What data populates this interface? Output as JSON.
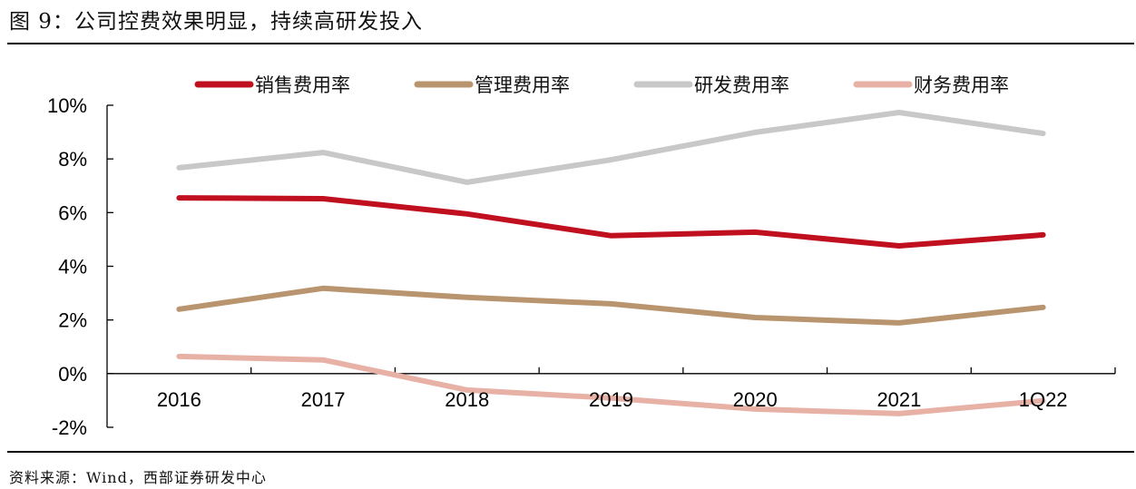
{
  "title": "图 9：公司控费效果明显，持续高研发投入",
  "source": "资料来源：Wind，西部证券研发中心",
  "chart_data": {
    "type": "line",
    "title": "图 9：公司控费效果明显，持续高研发投入",
    "xlabel": "",
    "ylabel": "",
    "categories": [
      "2016",
      "2017",
      "2018",
      "2019",
      "2020",
      "2021",
      "1Q22"
    ],
    "ylim": [
      -2,
      10
    ],
    "yticks": [
      -2,
      0,
      2,
      4,
      6,
      8,
      10
    ],
    "ytick_labels": [
      "-2%",
      "0%",
      "2%",
      "4%",
      "6%",
      "8%",
      "10%"
    ],
    "grid": false,
    "legend_position": "top",
    "series": [
      {
        "name": "销售费用率",
        "color": "#c0101f",
        "values": [
          6.55,
          6.52,
          5.95,
          5.14,
          5.27,
          4.76,
          5.17
        ]
      },
      {
        "name": "管理费用率",
        "color": "#b9956f",
        "values": [
          2.4,
          3.18,
          2.84,
          2.6,
          2.09,
          1.89,
          2.47
        ]
      },
      {
        "name": "研发费用率",
        "color": "#c8c8c8",
        "values": [
          7.67,
          8.24,
          7.13,
          7.97,
          8.99,
          9.73,
          8.95
        ]
      },
      {
        "name": "财务费用率",
        "color": "#e8b1a6",
        "values": [
          0.64,
          0.51,
          -0.61,
          -0.91,
          -1.32,
          -1.49,
          -1.01
        ]
      }
    ]
  }
}
